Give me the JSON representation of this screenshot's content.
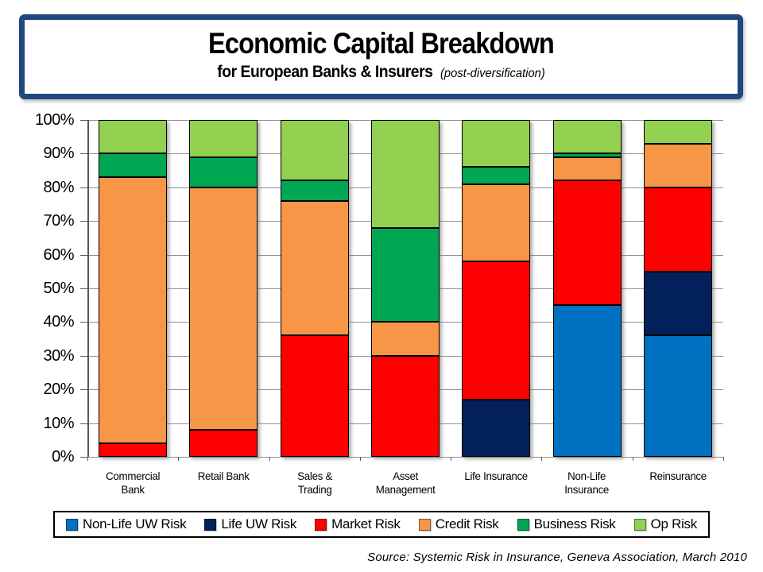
{
  "title": {
    "main": "Economic Capital Breakdown",
    "sub": "for European Banks & Insurers",
    "note": "(post-diversification)"
  },
  "source": "Source:  Systemic Risk in Insurance, Geneva Association,  March 2010",
  "chart_data": {
    "type": "bar",
    "stacked": true,
    "unit": "percent",
    "title": "Economic Capital Breakdown for European Banks & Insurers (post-diversification)",
    "xlabel": "",
    "ylabel": "",
    "ylim": [
      0,
      100
    ],
    "grid": true,
    "legend_position": "bottom",
    "y_ticks": [
      {
        "value": 0,
        "label": "0%"
      },
      {
        "value": 10,
        "label": "10%"
      },
      {
        "value": 20,
        "label": "20%"
      },
      {
        "value": 30,
        "label": "30%"
      },
      {
        "value": 40,
        "label": "40%"
      },
      {
        "value": 50,
        "label": "50%"
      },
      {
        "value": 60,
        "label": "60%"
      },
      {
        "value": 70,
        "label": "70%"
      },
      {
        "value": 80,
        "label": "80%"
      },
      {
        "value": 90,
        "label": "90%"
      },
      {
        "value": 100,
        "label": "100%"
      }
    ],
    "categories": [
      "Commercial Bank",
      "Retail Bank",
      "Sales & Trading",
      "Asset Management",
      "Life Insurance",
      "Non-Life Insurance",
      "Reinsurance"
    ],
    "category_label_lines": [
      [
        "Commercial",
        "Bank"
      ],
      [
        "Retail Bank"
      ],
      [
        "Sales &",
        "Trading"
      ],
      [
        "Asset",
        "Management"
      ],
      [
        "Life Insurance"
      ],
      [
        "Non-Life",
        "Insurance"
      ],
      [
        "Reinsurance"
      ]
    ],
    "series": [
      {
        "name": "Non-Life UW Risk",
        "color": "#0071C1",
        "values": [
          0,
          0,
          0,
          0,
          0,
          45,
          36
        ]
      },
      {
        "name": "Life UW Risk",
        "color": "#02215B",
        "values": [
          0,
          0,
          0,
          0,
          17,
          0,
          19
        ]
      },
      {
        "name": "Market Risk",
        "color": "#FF0000",
        "values": [
          4,
          8,
          36,
          30,
          41,
          37,
          25
        ]
      },
      {
        "name": "Credit Risk",
        "color": "#F79646",
        "values": [
          79,
          72,
          40,
          10,
          23,
          7,
          13
        ]
      },
      {
        "name": "Business Risk",
        "color": "#00A651",
        "values": [
          7,
          9,
          6,
          28,
          5,
          1,
          0
        ]
      },
      {
        "name": "Op Risk",
        "color": "#92D050",
        "values": [
          10,
          11,
          18,
          32,
          14,
          10,
          7
        ]
      }
    ]
  }
}
